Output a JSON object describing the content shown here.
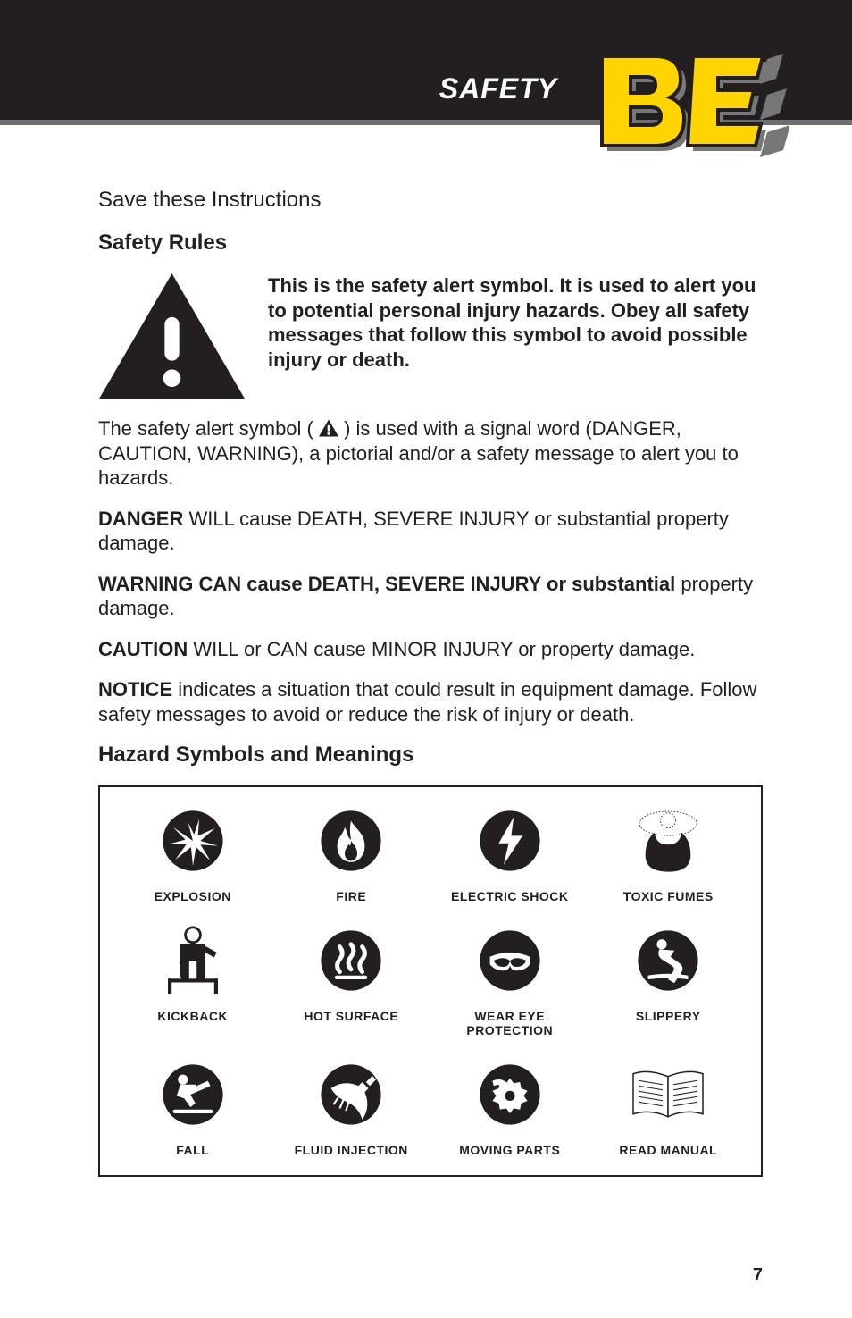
{
  "header": {
    "title": "SAFETY",
    "bar_color": "#231f20",
    "divider_color": "#6d6e71"
  },
  "page_number": "7",
  "text": {
    "save_instructions": "Save these Instructions",
    "safety_rules_heading": "Safety Rules",
    "alert_symbol_desc": "This is the safety alert symbol. It is used to alert you to potential personal injury hazards. Obey all safety messages that follow this symbol to avoid possible injury or death.",
    "signal_word_para_pre": "The safety alert symbol ( ",
    "signal_word_para_post": " ) is used with a signal word (DANGER, CAUTION, WARNING), a pictorial and/or a safety message to alert you to hazards.",
    "danger_bold": "DANGER",
    "danger_rest": " WILL cause DEATH, SEVERE INJURY or substantial property damage.",
    "warning_bold": "WARNING CAN cause DEATH, SEVERE INJURY or substantial",
    "warning_rest": " property damage.",
    "caution_bold": "CAUTION",
    "caution_rest": " WILL or CAN cause MINOR INJURY or property damage.",
    "notice_bold": "NOTICE",
    "notice_rest": " indicates a situation that could result in equipment damage. Follow safety messages to avoid or reduce the risk of injury or death.",
    "hazard_heading": "Hazard Symbols and Meanings"
  },
  "hazards": [
    {
      "id": "explosion",
      "label": "EXPLOSION"
    },
    {
      "id": "fire",
      "label": "FIRE"
    },
    {
      "id": "electric-shock",
      "label": "ELECTRIC SHOCK"
    },
    {
      "id": "toxic-fumes",
      "label": "TOXIC FUMES"
    },
    {
      "id": "kickback",
      "label": "KICKBACK"
    },
    {
      "id": "hot-surface",
      "label": "HOT SURFACE"
    },
    {
      "id": "wear-eye",
      "label": "WEAR EYE\nPROTECTION"
    },
    {
      "id": "slippery",
      "label": "SLIPPERY"
    },
    {
      "id": "fall",
      "label": "FALL"
    },
    {
      "id": "fluid-injection",
      "label": "FLUID INJECTION"
    },
    {
      "id": "moving-parts",
      "label": "MOVING PARTS"
    },
    {
      "id": "read-manual",
      "label": "READ MANUAL"
    }
  ],
  "colors": {
    "text": "#231f20",
    "background": "#ffffff",
    "logo_yellow": "#ffd400",
    "logo_shadow": "#777777"
  }
}
